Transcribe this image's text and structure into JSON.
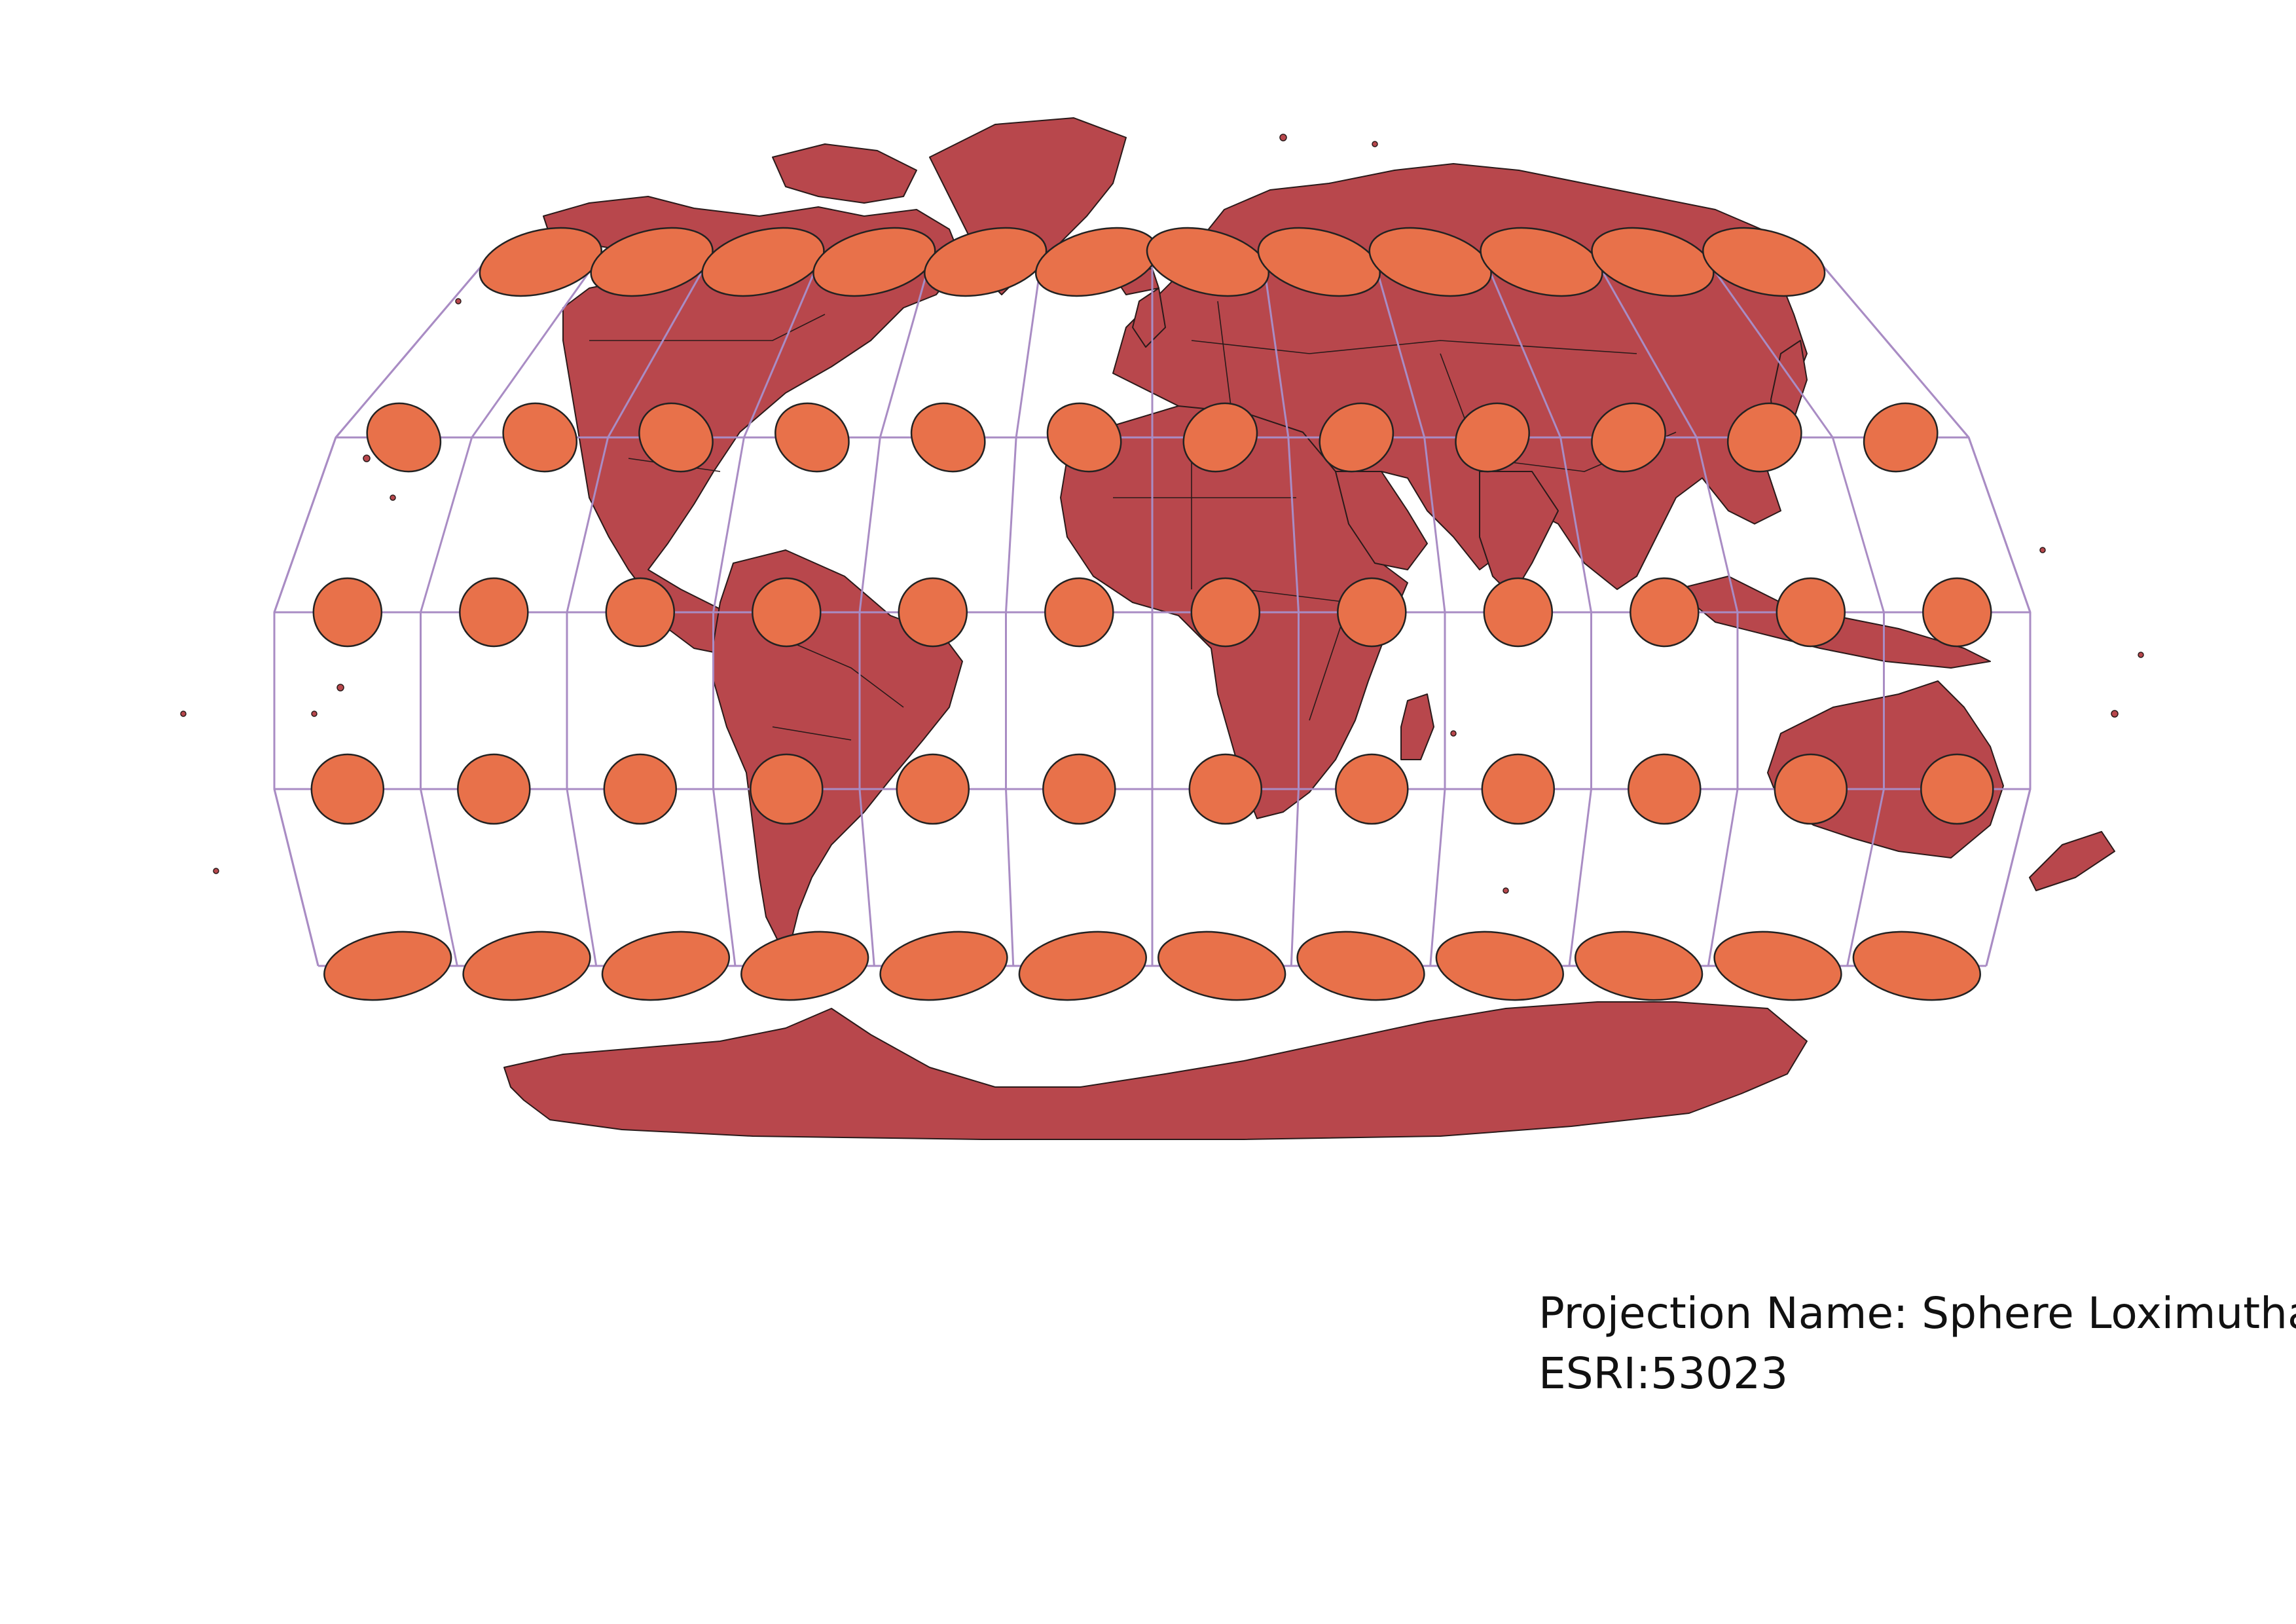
{
  "caption": {
    "projection_line": "Projection Name: Sphere Loximuthal",
    "code_line": "ESRI:53023"
  },
  "colors": {
    "land": "#b8474c",
    "border": "#2a1a1a",
    "graticule": "#a98cc4",
    "indicatrix": "#e8714a",
    "background": "#ffffff"
  },
  "map": {
    "projection": "Sphere Loximuthal",
    "graticule": {
      "parallels_deg": [
        60,
        30,
        0,
        -30,
        -60
      ],
      "meridians_deg": [
        -150,
        -120,
        -90,
        -60,
        -30,
        0,
        30,
        60,
        90,
        120,
        150,
        180
      ],
      "indicatrix_latitudes_deg": [
        60,
        30,
        0,
        -30,
        -60
      ],
      "indicatrix_longitudes_deg": [
        -180,
        -150,
        -120,
        -90,
        -60,
        -30,
        0,
        30,
        60,
        90,
        120,
        150
      ]
    },
    "feature_icons": [
      "tissot-indicatrix-icon",
      "landmass-icon",
      "graticule-icon"
    ]
  }
}
